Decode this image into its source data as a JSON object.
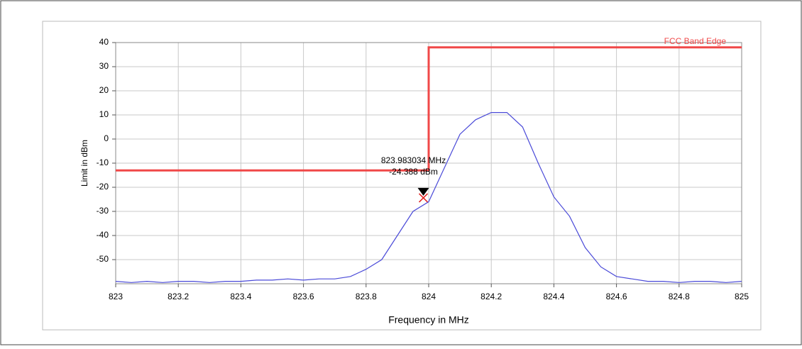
{
  "chart_data": {
    "type": "line",
    "xlabel": "Frequency in MHz",
    "ylabel": "Limit in dBm",
    "xlim": [
      823,
      825
    ],
    "xticks": [
      823,
      823.2,
      823.4,
      823.6,
      823.8,
      824,
      824.2,
      824.4,
      824.6,
      824.8,
      825
    ],
    "ylim": [
      -60,
      40
    ],
    "yticks": [
      40,
      30,
      20,
      10,
      0,
      -10,
      -20,
      -30,
      -40,
      -50
    ],
    "grid": true,
    "series": [
      {
        "name": "FCC Band Edge",
        "color": "#f04848",
        "x": [
          823,
          824,
          824,
          825
        ],
        "values": [
          -13,
          -13,
          38,
          38
        ]
      },
      {
        "color": "#4a4ad8",
        "x": [
          823,
          823.05,
          823.1,
          823.15,
          823.2,
          823.25,
          823.3,
          823.35,
          823.4,
          823.45,
          823.5,
          823.55,
          823.6,
          823.65,
          823.7,
          823.75,
          823.8,
          823.85,
          823.9,
          823.95,
          824,
          824.05,
          824.1,
          824.15,
          824.2,
          824.25,
          824.3,
          824.35,
          824.4,
          824.45,
          824.5,
          824.55,
          824.6,
          824.65,
          824.7,
          824.75,
          824.8,
          824.85,
          824.9,
          824.95,
          825
        ],
        "values": [
          -59,
          -59.5,
          -59,
          -59.5,
          -59,
          -59,
          -59.5,
          -59,
          -59,
          -58.5,
          -58.5,
          -58,
          -58.5,
          -58,
          -58,
          -57,
          -54,
          -50,
          -40,
          -30,
          -26,
          -12,
          2,
          8,
          11,
          11,
          5,
          -10,
          -24,
          -32,
          -45,
          -53,
          -57,
          -58,
          -59,
          -59,
          -59.5,
          -59,
          -59,
          -59.5,
          -59
        ]
      }
    ],
    "marker": {
      "x": 823.983034,
      "y": -24.388,
      "label_x": "823.983034 MHz",
      "label_y": "-24.388 dBm"
    }
  }
}
